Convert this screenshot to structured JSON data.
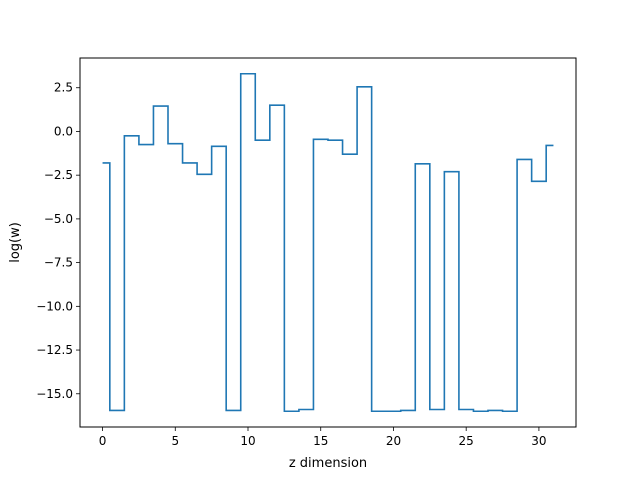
{
  "chart_data": {
    "type": "line",
    "drawstyle": "steps-mid",
    "title": "",
    "xlabel": "z dimension",
    "ylabel": "log(w)",
    "xlim": [
      -1.55,
      32.55
    ],
    "ylim": [
      -16.9,
      4.2
    ],
    "xticks": [
      0,
      5,
      10,
      15,
      20,
      25,
      30
    ],
    "xtick_labels": [
      "0",
      "5",
      "10",
      "15",
      "20",
      "25",
      "30"
    ],
    "yticks": [
      2.5,
      0.0,
      -2.5,
      -5.0,
      -7.5,
      -10.0,
      -12.5,
      -15.0
    ],
    "ytick_labels": [
      "2.5",
      "0.0",
      "−2.5",
      "−5.0",
      "−7.5",
      "−10.0",
      "−12.5",
      "−15.0"
    ],
    "grid": false,
    "series": [
      {
        "color": "#1f77b4",
        "x": [
          0,
          1,
          2,
          3,
          4,
          5,
          6,
          7,
          8,
          9,
          10,
          11,
          12,
          13,
          14,
          15,
          16,
          17,
          18,
          19,
          20,
          21,
          22,
          23,
          24,
          25,
          26,
          27,
          28,
          29,
          30,
          31
        ],
        "y": [
          -1.8,
          -15.95,
          -0.25,
          -0.75,
          1.45,
          -0.7,
          -1.8,
          -2.45,
          -0.85,
          -15.95,
          3.3,
          -0.5,
          1.5,
          -16.0,
          -15.9,
          -0.45,
          -0.5,
          -1.3,
          2.55,
          -16.0,
          -16.0,
          -15.95,
          -1.85,
          -15.9,
          -2.3,
          -15.9,
          -16.0,
          -15.95,
          -16.0,
          -1.6,
          -2.85,
          -0.8
        ]
      }
    ]
  }
}
